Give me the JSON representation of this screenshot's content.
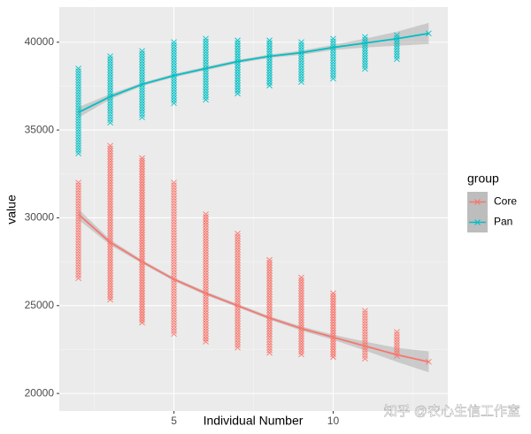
{
  "chart_data": {
    "type": "scatter-smooth",
    "x_label": "Individual Number",
    "y_label": "value",
    "xlim": [
      1.4,
      13.6
    ],
    "ylim": [
      19000,
      42000
    ],
    "xticks": [
      5,
      10
    ],
    "yticks": [
      20000,
      25000,
      30000,
      35000,
      40000
    ],
    "grid": true,
    "legend_title": "group",
    "legend_position": "right",
    "x": [
      2,
      3,
      4,
      5,
      6,
      7,
      8,
      9,
      10,
      11,
      12,
      13
    ],
    "series": [
      {
        "name": "Core",
        "color": "#f8766d",
        "min": [
          26500,
          25200,
          24000,
          23300,
          22900,
          22500,
          22300,
          22100,
          22000,
          21900,
          22000,
          21800
        ],
        "max": [
          32000,
          34100,
          33400,
          32000,
          30200,
          29100,
          27600,
          26600,
          25700,
          24700,
          23500,
          21800
        ],
        "smooth": [
          30200,
          28600,
          27500,
          26500,
          25700,
          25000,
          24300,
          23700,
          23200,
          22700,
          22200,
          21800
        ],
        "ci": [
          300,
          150,
          100,
          100,
          100,
          100,
          100,
          120,
          150,
          250,
          400,
          600
        ]
      },
      {
        "name": "Pan",
        "color": "#00bfc4",
        "min": [
          33600,
          35400,
          35600,
          36500,
          36700,
          37000,
          37400,
          37600,
          37800,
          38400,
          38900,
          40500
        ],
        "max": [
          38500,
          39200,
          39500,
          40000,
          40200,
          40100,
          40100,
          40000,
          40200,
          40300,
          40400,
          40500
        ],
        "smooth": [
          36000,
          36900,
          37600,
          38100,
          38500,
          38900,
          39200,
          39400,
          39700,
          39950,
          40200,
          40500
        ],
        "ci": [
          300,
          150,
          100,
          100,
          100,
          100,
          100,
          120,
          150,
          250,
          400,
          600
        ]
      }
    ],
    "watermark": "知乎 @农心生信工作室"
  }
}
